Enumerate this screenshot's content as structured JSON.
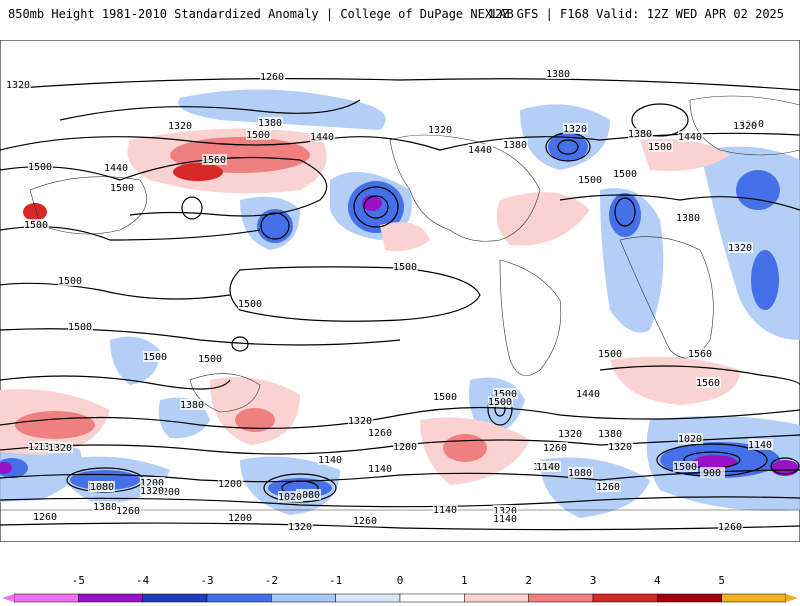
{
  "header": {
    "left_title": "850mb Height 1981-2010 Standardized Anomaly | College of DuPage NEXLAB",
    "right_title": "12Z GFS | F168 Valid: 12Z WED APR 02 2025"
  },
  "colorbar": {
    "tick_labels": [
      "-5",
      "-4",
      "-3",
      "-2",
      "-1",
      "0",
      "1",
      "2",
      "3",
      "4",
      "5"
    ],
    "colors": [
      "#ef71f0",
      "#9a12c8",
      "#1e3db8",
      "#4670e8",
      "#a6c6f6",
      "#d8e8fc",
      "#ffffff",
      "#fbd2d2",
      "#f08080",
      "#d72828",
      "#a00010",
      "#f0b020"
    ]
  },
  "map": {
    "contour_labels": [
      "1320",
      "1260",
      "1380",
      "1320",
      "1440",
      "1500",
      "1560",
      "1500",
      "1440",
      "1500",
      "1500",
      "1380",
      "1320",
      "1320",
      "1380",
      "1440",
      "1560",
      "1500",
      "1500",
      "1380",
      "1320",
      "1500",
      "1500",
      "1500",
      "1500",
      "1500",
      "1500",
      "1560",
      "1500",
      "1440",
      "1380",
      "1320",
      "1260",
      "1200",
      "1140",
      "1560",
      "1380",
      "1320",
      "1260",
      "1200",
      "1140",
      "1080",
      "1020",
      "1500",
      "1320",
      "1260",
      "1200",
      "1140",
      "1080",
      "1020",
      "900",
      "1140",
      "1260",
      "1380",
      "1320",
      "1200",
      "1260",
      "1080",
      "1380",
      "1260",
      "1200",
      "1320",
      "1140",
      "1260",
      "1320",
      "1200",
      "1140",
      "1260",
      "1320",
      "1500",
      "1500",
      "1500",
      "1440",
      "1380",
      "1320",
      "1500",
      "1260"
    ]
  }
}
